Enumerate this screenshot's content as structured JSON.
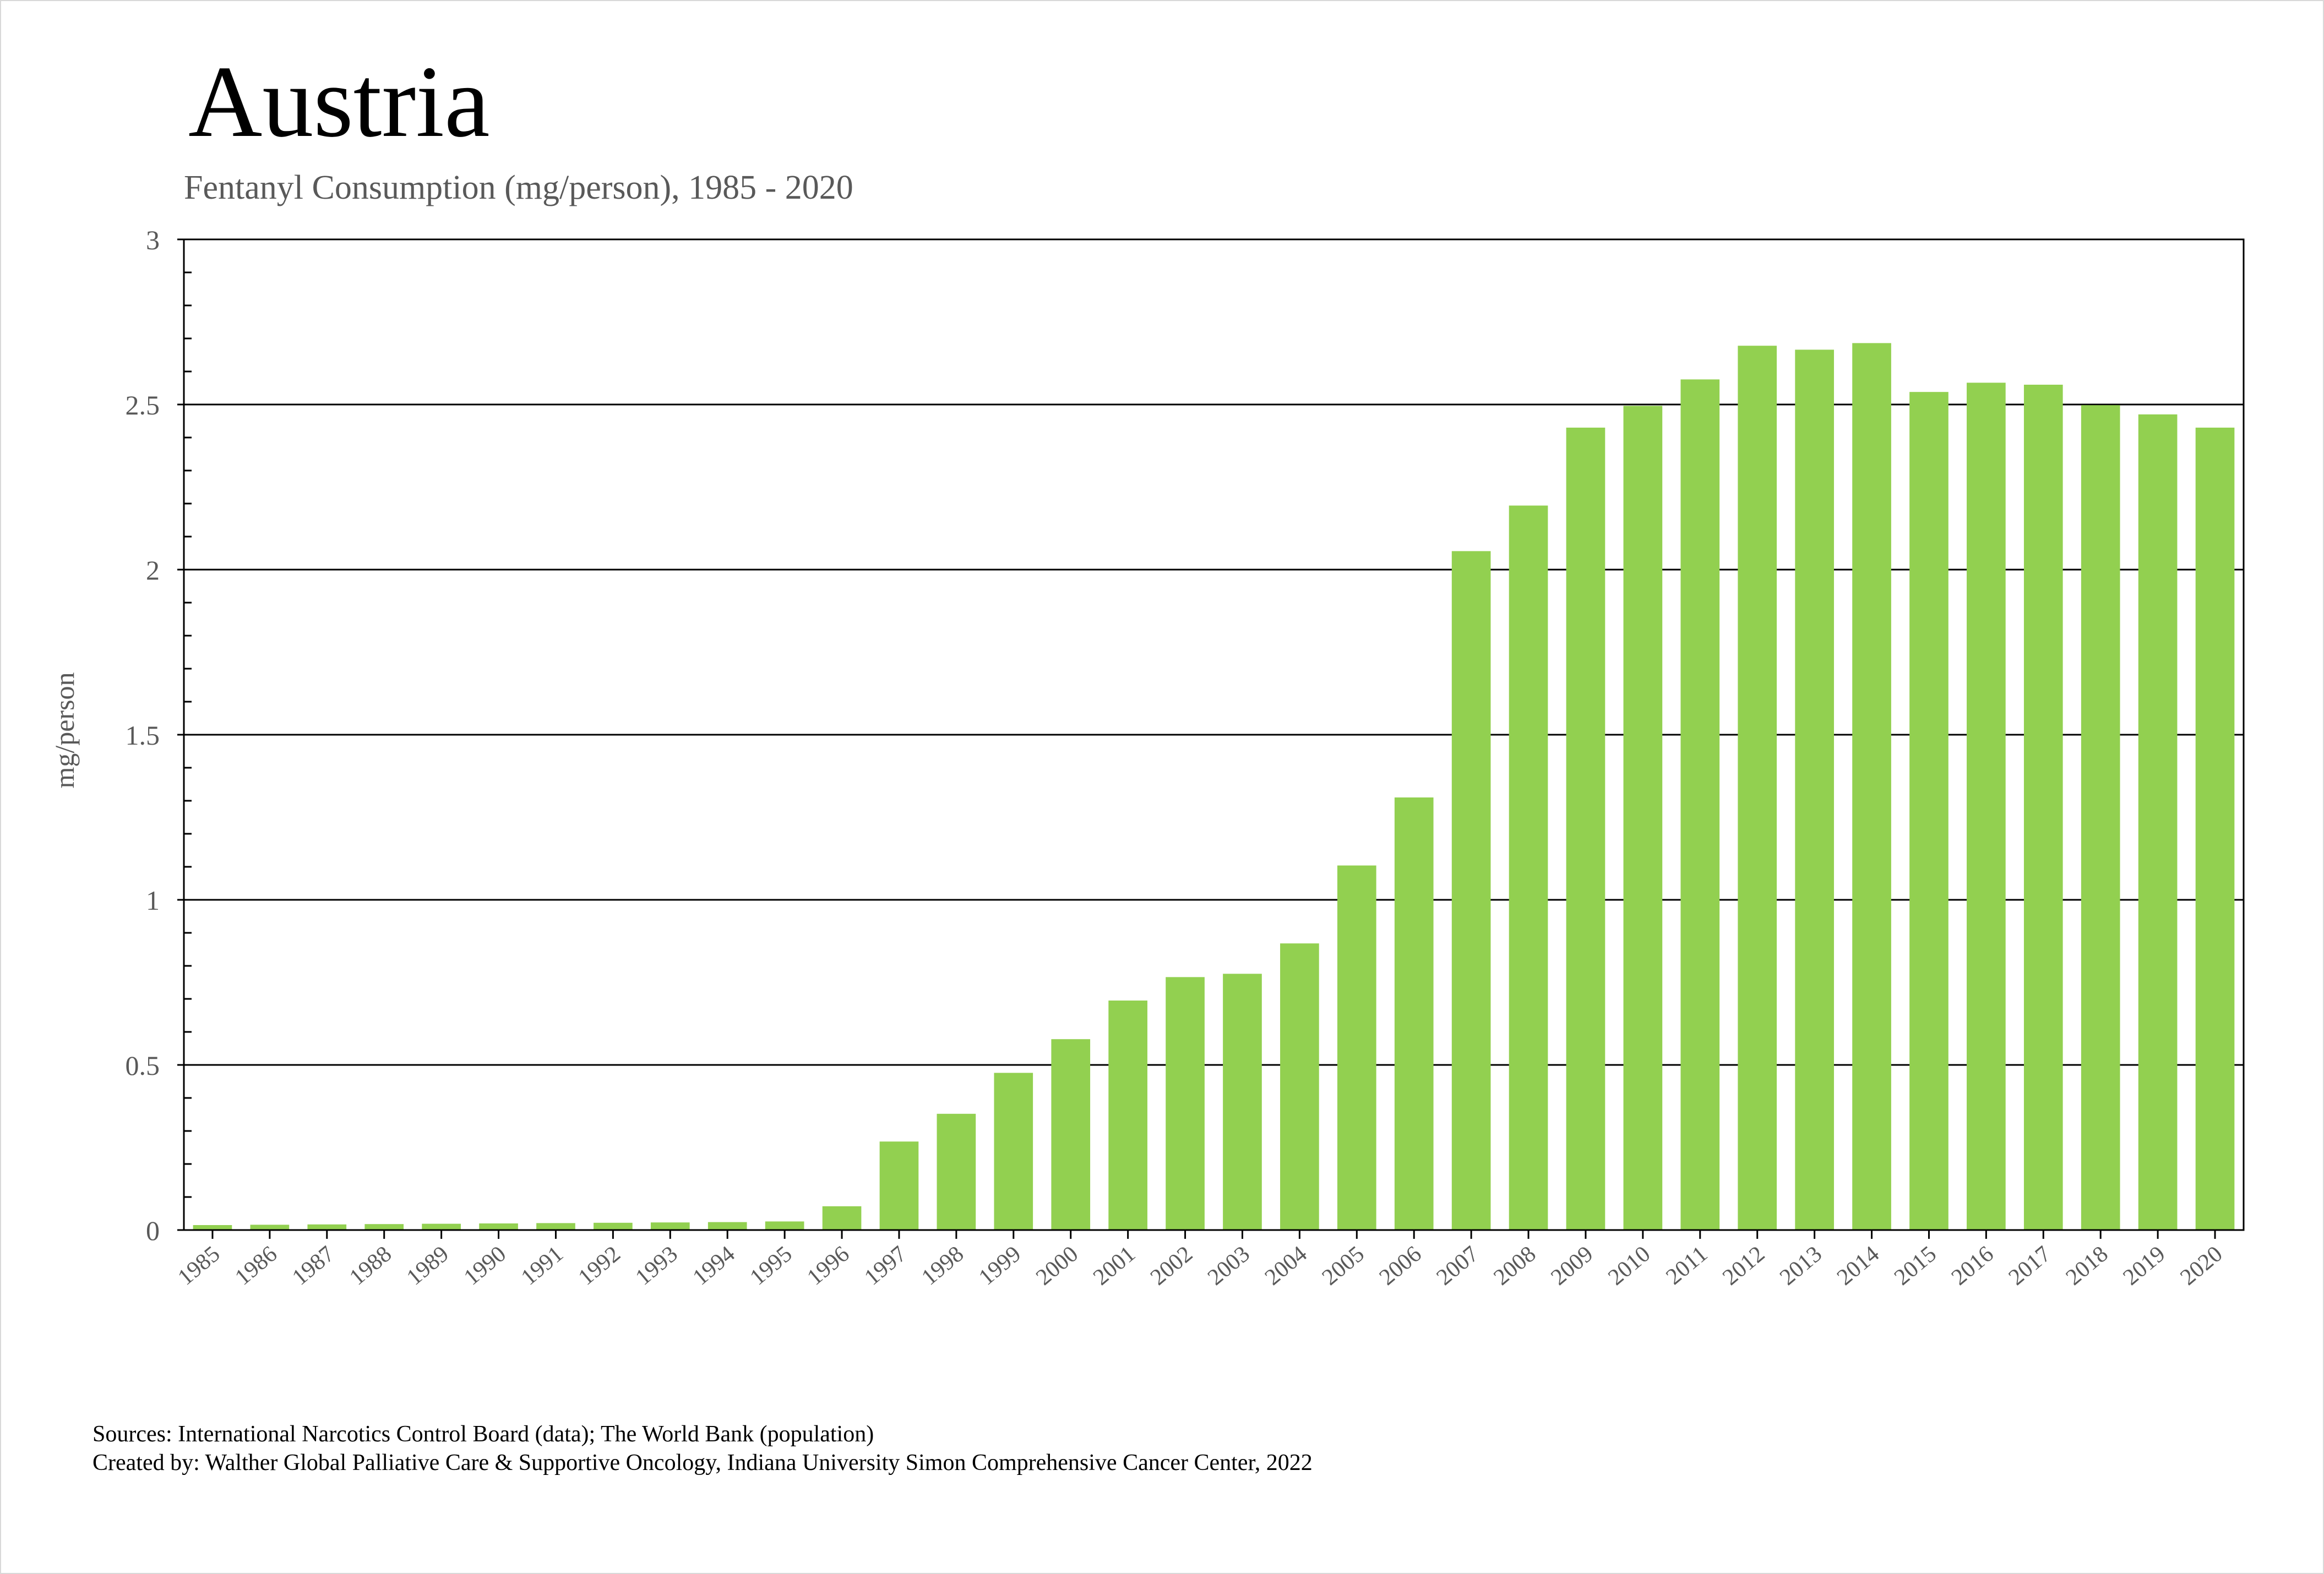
{
  "title": "Austria",
  "subtitle": "Fentanyl Consumption (mg/person), 1985 - 2020",
  "footer": {
    "sources": "Sources: International Narcotics Control Board (data); The World Bank (population)",
    "created_by": "Created by: Walther Global Palliative Care & Supportive Oncology, Indiana University Simon Comprehensive Cancer Center, 2022"
  },
  "colors": {
    "bar": "#92d050",
    "axis": "#000000",
    "gridline": "#000000",
    "tick_label": "#595959",
    "title": "#000000",
    "subtitle": "#595959"
  },
  "chart_data": {
    "type": "bar",
    "title": "Austria",
    "subtitle": "Fentanyl Consumption (mg/person), 1985 - 2020",
    "xlabel": "",
    "ylabel": "mg/person",
    "ylim": [
      0,
      3
    ],
    "yticks": [
      "0",
      "0.5",
      "1",
      "1.5",
      "2",
      "2.5",
      "3"
    ],
    "grid": true,
    "legend": "none",
    "categories": [
      "1985",
      "1986",
      "1987",
      "1988",
      "1989",
      "1990",
      "1991",
      "1992",
      "1993",
      "1994",
      "1995",
      "1996",
      "1997",
      "1998",
      "1999",
      "2000",
      "2001",
      "2002",
      "2003",
      "2004",
      "2005",
      "2006",
      "2007",
      "2008",
      "2009",
      "2010",
      "2011",
      "2012",
      "2013",
      "2014",
      "2015",
      "2016",
      "2017",
      "2018",
      "2019",
      "2020"
    ],
    "values": [
      0.015,
      0.016,
      0.017,
      0.018,
      0.019,
      0.02,
      0.021,
      0.022,
      0.023,
      0.024,
      0.026,
      0.072,
      0.268,
      0.352,
      0.476,
      0.578,
      0.695,
      0.766,
      0.776,
      0.868,
      1.104,
      1.31,
      2.056,
      2.194,
      2.43,
      2.496,
      2.576,
      2.678,
      2.666,
      2.686,
      2.538,
      2.566,
      2.56,
      2.498,
      2.47,
      2.43
    ]
  }
}
